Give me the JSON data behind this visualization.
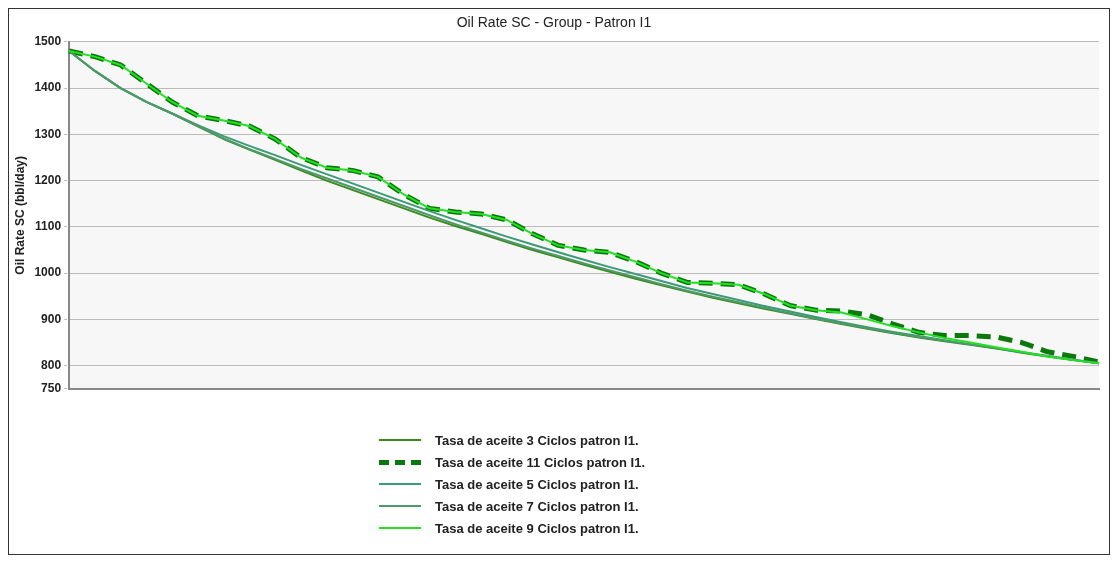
{
  "chart_data": {
    "type": "line",
    "title": "Oil Rate SC - Group - Patron I1",
    "ylabel": "Oil Rate SC (bbl/day)",
    "categories": [
      null,
      null,
      null,
      null,
      null,
      null,
      null,
      null,
      null,
      null,
      null,
      null,
      null,
      null,
      null,
      null,
      null,
      null,
      null,
      null,
      null,
      null,
      null,
      null,
      null,
      null,
      null,
      null,
      null,
      null,
      null,
      null,
      null,
      null,
      null,
      null,
      null,
      null,
      null,
      null,
      null
    ],
    "ylim": [
      750,
      1500
    ],
    "yticks": [
      750,
      800,
      900,
      1000,
      1100,
      1200,
      1300,
      1400,
      1500
    ],
    "grid": "y",
    "legend": "bottom",
    "tick_labels": "y",
    "series": [
      {
        "name": "Tasa de aceite 3 Ciclos patron I1.",
        "color": "#3f8a1f",
        "values": [
          1480,
          1437,
          1400,
          1370,
          1345,
          1317,
          1290,
          1267,
          1245,
          1222,
          1200,
          1180,
          1160,
          1140,
          1120,
          1102,
          1085,
          1067,
          1050,
          1034,
          1018,
          1003,
          988,
          974,
          960,
          947,
          935,
          923,
          912,
          901,
          890,
          880,
          870,
          861,
          853,
          845,
          837,
          828,
          820,
          812,
          805
        ]
      },
      {
        "name": "Tasa de aceite 11 Ciclos patron I1.",
        "color": "#0a780a",
        "line_style": "dashed",
        "values": [
          1480,
          1468,
          1450,
          1410,
          1370,
          1340,
          1330,
          1318,
          1290,
          1250,
          1228,
          1222,
          1208,
          1170,
          1140,
          1132,
          1128,
          1115,
          1085,
          1060,
          1050,
          1045,
          1025,
          1000,
          980,
          978,
          975,
          955,
          930,
          920,
          918,
          910,
          890,
          872,
          865,
          865,
          862,
          850,
          830,
          820,
          808
        ]
      },
      {
        "name": "Tasa de aceite 5 Ciclos patron I1.",
        "color": "#3c9a78",
        "values": [
          1480,
          1437,
          1400,
          1370,
          1345,
          1320,
          1296,
          1275,
          1255,
          1234,
          1214,
          1194,
          1174,
          1154,
          1134,
          1115,
          1097,
          1079,
          1062,
          1045,
          1029,
          1013,
          998,
          983,
          968,
          955,
          942,
          929,
          917,
          905,
          894,
          883,
          873,
          864,
          855,
          846,
          838,
          829,
          821,
          813,
          805
        ]
      },
      {
        "name": "Tasa de aceite 7 Ciclos patron I1.",
        "color": "#4c9a68",
        "values": [
          1480,
          1437,
          1400,
          1370,
          1345,
          1318,
          1291,
          1268,
          1247,
          1225,
          1205,
          1185,
          1165,
          1145,
          1125,
          1106,
          1088,
          1070,
          1053,
          1037,
          1021,
          1006,
          991,
          976,
          962,
          949,
          937,
          925,
          913,
          902,
          891,
          881,
          871,
          862,
          854,
          846,
          838,
          829,
          821,
          813,
          805
        ]
      },
      {
        "name": "Tasa de aceite 9 Ciclos patron I1.",
        "color": "#22e022",
        "values": [
          1480,
          1468,
          1450,
          1410,
          1370,
          1340,
          1330,
          1318,
          1290,
          1250,
          1228,
          1222,
          1208,
          1170,
          1140,
          1132,
          1128,
          1115,
          1085,
          1060,
          1050,
          1045,
          1025,
          1000,
          980,
          978,
          975,
          955,
          930,
          920,
          915,
          900,
          885,
          872,
          860,
          850,
          840,
          830,
          820,
          812,
          805
        ]
      }
    ]
  }
}
